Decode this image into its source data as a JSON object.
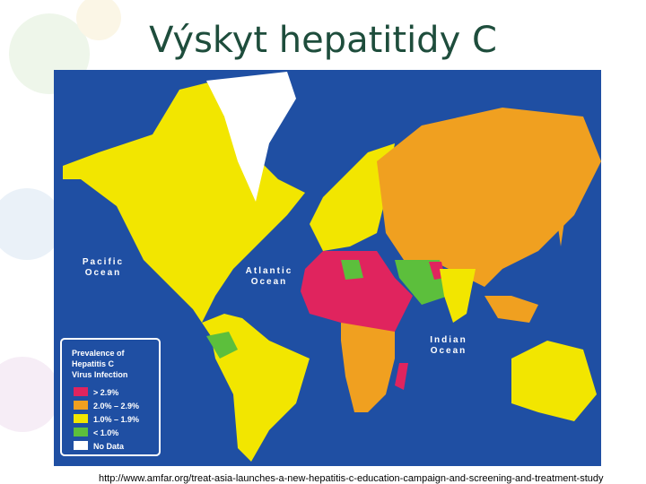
{
  "header": {
    "title": "Výskyt hepatitidy C"
  },
  "map": {
    "oceans": [
      [
        "Pacific",
        "Ocean"
      ],
      [
        "Atlantic",
        "Ocean"
      ],
      [
        "Indian",
        "Ocean"
      ]
    ],
    "legend": {
      "title": [
        "Prevalence of",
        "Hepatitis C",
        "Virus Infection"
      ],
      "entries": [
        "> 2.9%",
        "2.0% – 2.9%",
        "1.0% – 1.9%",
        "< 1.0%",
        "No Data"
      ]
    }
  },
  "footer": {
    "source": "http://www.amfar.org/treat-asia-launches-a-new-hepatitis-c-education-campaign-and-screening-and-treatment-study"
  }
}
